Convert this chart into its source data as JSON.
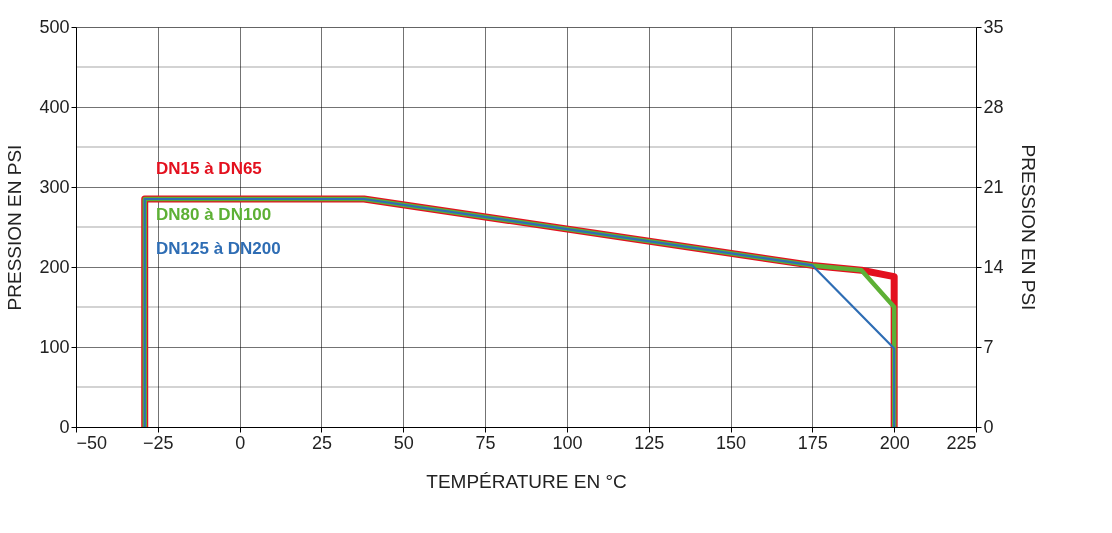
{
  "chart_data": {
    "type": "line",
    "xlabel": "TEMPÉRATURE EN °C",
    "ylabel": "PRESSION EN PSI",
    "y2label": "PRESSION EN PSI",
    "xlim": [
      -50,
      225
    ],
    "xticks": [
      -50,
      -25,
      0,
      25,
      50,
      75,
      100,
      125,
      150,
      175,
      200,
      225
    ],
    "ylim": [
      0,
      500
    ],
    "yticks": [
      0,
      {
        "value": 50,
        "label": null
      },
      100,
      {
        "value": 150,
        "label": null
      },
      200,
      {
        "value": 250,
        "label": null
      },
      300,
      {
        "value": 350,
        "label": null
      },
      400,
      {
        "value": 450,
        "label": null
      },
      500
    ],
    "y2lim": [
      0,
      35
    ],
    "y2ticks": [
      0,
      7,
      14,
      21,
      28,
      35
    ],
    "grid": true,
    "marker": "none",
    "line_style": "solid",
    "series": [
      {
        "name": "DN15 à DN65",
        "color": "#e3101e",
        "x": [
          -29,
          -29,
          38,
          175,
          190,
          200,
          200
        ],
        "values": [
          0,
          285,
          285,
          202,
          196,
          188,
          0
        ]
      },
      {
        "name": "DN80 à DN100",
        "color": "#5db035",
        "x": [
          -29,
          -29,
          38,
          175,
          190,
          200,
          200
        ],
        "values": [
          0,
          285,
          285,
          202,
          196,
          150,
          0
        ]
      },
      {
        "name": "DN125 à DN200",
        "color": "#2e6db4",
        "x": [
          -29,
          -29,
          38,
          175,
          200,
          200
        ],
        "values": [
          0,
          285,
          285,
          202,
          98,
          0
        ]
      }
    ]
  }
}
